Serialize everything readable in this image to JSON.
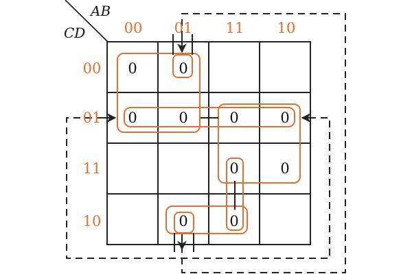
{
  "axis": {
    "row_var": "CD",
    "col_var": "AB"
  },
  "col_codes": [
    "00",
    "01",
    "11",
    "10"
  ],
  "row_codes": [
    "00",
    "01",
    "11",
    "10"
  ],
  "cells": [
    [
      "0",
      "0",
      "",
      ""
    ],
    [
      "0",
      "0",
      "0",
      "0"
    ],
    [
      "",
      "",
      "0",
      "0"
    ],
    [
      "",
      "0",
      "0",
      ""
    ]
  ],
  "colors": {
    "code": "#e07030",
    "loop": "#e07030",
    "grid": "#222222",
    "dashed": "#222222"
  }
}
